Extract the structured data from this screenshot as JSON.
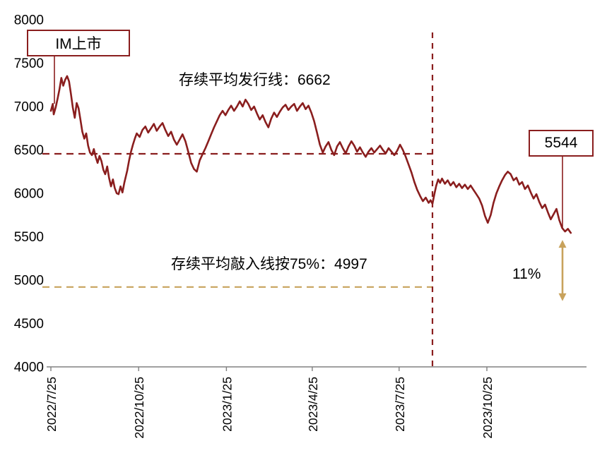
{
  "chart_data": {
    "type": "line",
    "title": "",
    "xlabel": "",
    "ylabel": "",
    "x_unit": "days_since_2022/7/25",
    "xlim": [
      0,
      560
    ],
    "ylim": [
      4000,
      8000
    ],
    "grid": false,
    "legend": "none",
    "y_ticks": [
      8000,
      7500,
      7000,
      6500,
      6000,
      5500,
      5000,
      4500,
      4000
    ],
    "x_ticks": [
      {
        "label": "2022/7/25",
        "x": 0
      },
      {
        "label": "2022/10/25",
        "x": 92
      },
      {
        "label": "2023/1/25",
        "x": 184
      },
      {
        "label": "2023/4/25",
        "x": 274
      },
      {
        "label": "2023/7/25",
        "x": 365
      },
      {
        "label": "2023/10/25",
        "x": 457
      }
    ],
    "colors": {
      "series": "#8A1E1E",
      "issuance_line": "#8A1E1E",
      "knockin_line": "#C8A25C",
      "vertical_line": "#8A1E1E",
      "axis": "#808080",
      "text": "#000000"
    },
    "reference_lines": [
      {
        "name": "issuance-line",
        "label": "存续平均发行线：6662",
        "value": 6662,
        "plot_y": 6455,
        "color": "#8A1E1E",
        "dashed": true
      },
      {
        "name": "knockin-line",
        "label": "存续平均敲入线按75%：4997",
        "value": 4997,
        "plot_y": 4920,
        "color": "#C8A25C",
        "dashed": true
      }
    ],
    "vertical_line": {
      "x_day": 400,
      "color": "#8A1E1E",
      "dashed": true
    },
    "annotations": {
      "listing_box": "IM上市",
      "issuance_label": "存续平均发行线：6662",
      "knockin_label": "存续平均敲入线按75%：4997",
      "end_value": "5544",
      "gap_label": "11%"
    },
    "end_point": {
      "x_day": 545,
      "value": 5544,
      "drop_to_knockin_pct": "11%"
    },
    "points": [
      [
        0,
        6950
      ],
      [
        2,
        7030
      ],
      [
        3,
        6910
      ],
      [
        5,
        6990
      ],
      [
        7,
        7090
      ],
      [
        9,
        7200
      ],
      [
        11,
        7330
      ],
      [
        13,
        7240
      ],
      [
        15,
        7310
      ],
      [
        17,
        7350
      ],
      [
        19,
        7290
      ],
      [
        21,
        7150
      ],
      [
        23,
        6990
      ],
      [
        25,
        6870
      ],
      [
        27,
        7040
      ],
      [
        29,
        6980
      ],
      [
        31,
        6850
      ],
      [
        33,
        6710
      ],
      [
        35,
        6630
      ],
      [
        37,
        6690
      ],
      [
        39,
        6550
      ],
      [
        41,
        6470
      ],
      [
        43,
        6440
      ],
      [
        45,
        6510
      ],
      [
        47,
        6420
      ],
      [
        49,
        6350
      ],
      [
        51,
        6430
      ],
      [
        53,
        6370
      ],
      [
        55,
        6270
      ],
      [
        57,
        6220
      ],
      [
        59,
        6310
      ],
      [
        61,
        6180
      ],
      [
        63,
        6080
      ],
      [
        65,
        6160
      ],
      [
        67,
        6060
      ],
      [
        69,
        6000
      ],
      [
        71,
        5990
      ],
      [
        73,
        6080
      ],
      [
        75,
        6010
      ],
      [
        77,
        6120
      ],
      [
        80,
        6260
      ],
      [
        82,
        6380
      ],
      [
        84,
        6480
      ],
      [
        86,
        6560
      ],
      [
        88,
        6630
      ],
      [
        90,
        6690
      ],
      [
        93,
        6650
      ],
      [
        96,
        6730
      ],
      [
        99,
        6770
      ],
      [
        102,
        6700
      ],
      [
        105,
        6750
      ],
      [
        108,
        6800
      ],
      [
        111,
        6720
      ],
      [
        114,
        6770
      ],
      [
        117,
        6810
      ],
      [
        120,
        6730
      ],
      [
        123,
        6660
      ],
      [
        126,
        6710
      ],
      [
        129,
        6620
      ],
      [
        132,
        6560
      ],
      [
        135,
        6620
      ],
      [
        138,
        6680
      ],
      [
        141,
        6600
      ],
      [
        144,
        6480
      ],
      [
        147,
        6350
      ],
      [
        150,
        6280
      ],
      [
        153,
        6250
      ],
      [
        156,
        6380
      ],
      [
        159,
        6450
      ],
      [
        162,
        6520
      ],
      [
        165,
        6600
      ],
      [
        168,
        6680
      ],
      [
        171,
        6760
      ],
      [
        174,
        6830
      ],
      [
        177,
        6900
      ],
      [
        180,
        6950
      ],
      [
        183,
        6900
      ],
      [
        186,
        6960
      ],
      [
        189,
        7010
      ],
      [
        192,
        6950
      ],
      [
        195,
        7000
      ],
      [
        198,
        7060
      ],
      [
        201,
        7000
      ],
      [
        204,
        7080
      ],
      [
        207,
        7030
      ],
      [
        210,
        6960
      ],
      [
        213,
        7000
      ],
      [
        216,
        6920
      ],
      [
        219,
        6850
      ],
      [
        222,
        6900
      ],
      [
        225,
        6820
      ],
      [
        228,
        6760
      ],
      [
        231,
        6860
      ],
      [
        234,
        6930
      ],
      [
        237,
        6880
      ],
      [
        240,
        6940
      ],
      [
        243,
        6990
      ],
      [
        246,
        7020
      ],
      [
        249,
        6960
      ],
      [
        252,
        7000
      ],
      [
        255,
        7030
      ],
      [
        258,
        6950
      ],
      [
        261,
        7000
      ],
      [
        264,
        7040
      ],
      [
        267,
        6970
      ],
      [
        270,
        7010
      ],
      [
        273,
        6930
      ],
      [
        276,
        6830
      ],
      [
        279,
        6700
      ],
      [
        282,
        6560
      ],
      [
        285,
        6470
      ],
      [
        288,
        6540
      ],
      [
        291,
        6590
      ],
      [
        294,
        6500
      ],
      [
        297,
        6440
      ],
      [
        300,
        6540
      ],
      [
        303,
        6590
      ],
      [
        306,
        6520
      ],
      [
        309,
        6460
      ],
      [
        312,
        6540
      ],
      [
        315,
        6600
      ],
      [
        318,
        6550
      ],
      [
        321,
        6480
      ],
      [
        324,
        6530
      ],
      [
        327,
        6470
      ],
      [
        330,
        6420
      ],
      [
        333,
        6480
      ],
      [
        336,
        6520
      ],
      [
        339,
        6470
      ],
      [
        342,
        6510
      ],
      [
        345,
        6550
      ],
      [
        348,
        6500
      ],
      [
        351,
        6460
      ],
      [
        354,
        6520
      ],
      [
        357,
        6480
      ],
      [
        360,
        6440
      ],
      [
        363,
        6490
      ],
      [
        366,
        6560
      ],
      [
        369,
        6500
      ],
      [
        372,
        6420
      ],
      [
        375,
        6330
      ],
      [
        378,
        6240
      ],
      [
        381,
        6130
      ],
      [
        384,
        6040
      ],
      [
        387,
        5970
      ],
      [
        390,
        5910
      ],
      [
        393,
        5950
      ],
      [
        396,
        5890
      ],
      [
        398,
        5920
      ],
      [
        400,
        5880
      ],
      [
        402,
        5990
      ],
      [
        404,
        6090
      ],
      [
        406,
        6160
      ],
      [
        408,
        6120
      ],
      [
        410,
        6170
      ],
      [
        413,
        6110
      ],
      [
        416,
        6150
      ],
      [
        419,
        6090
      ],
      [
        422,
        6130
      ],
      [
        425,
        6070
      ],
      [
        428,
        6110
      ],
      [
        431,
        6060
      ],
      [
        434,
        6100
      ],
      [
        437,
        6050
      ],
      [
        440,
        6090
      ],
      [
        443,
        6040
      ],
      [
        446,
        5990
      ],
      [
        449,
        5940
      ],
      [
        452,
        5860
      ],
      [
        455,
        5740
      ],
      [
        458,
        5660
      ],
      [
        461,
        5750
      ],
      [
        464,
        5890
      ],
      [
        467,
        6000
      ],
      [
        470,
        6080
      ],
      [
        473,
        6150
      ],
      [
        476,
        6210
      ],
      [
        479,
        6250
      ],
      [
        482,
        6220
      ],
      [
        485,
        6150
      ],
      [
        488,
        6180
      ],
      [
        491,
        6100
      ],
      [
        494,
        6130
      ],
      [
        497,
        6050
      ],
      [
        500,
        6090
      ],
      [
        503,
        6010
      ],
      [
        506,
        5940
      ],
      [
        509,
        5990
      ],
      [
        512,
        5900
      ],
      [
        515,
        5830
      ],
      [
        518,
        5870
      ],
      [
        521,
        5780
      ],
      [
        524,
        5700
      ],
      [
        527,
        5760
      ],
      [
        530,
        5820
      ],
      [
        533,
        5690
      ],
      [
        536,
        5600
      ],
      [
        539,
        5560
      ],
      [
        542,
        5590
      ],
      [
        545,
        5544
      ]
    ]
  }
}
